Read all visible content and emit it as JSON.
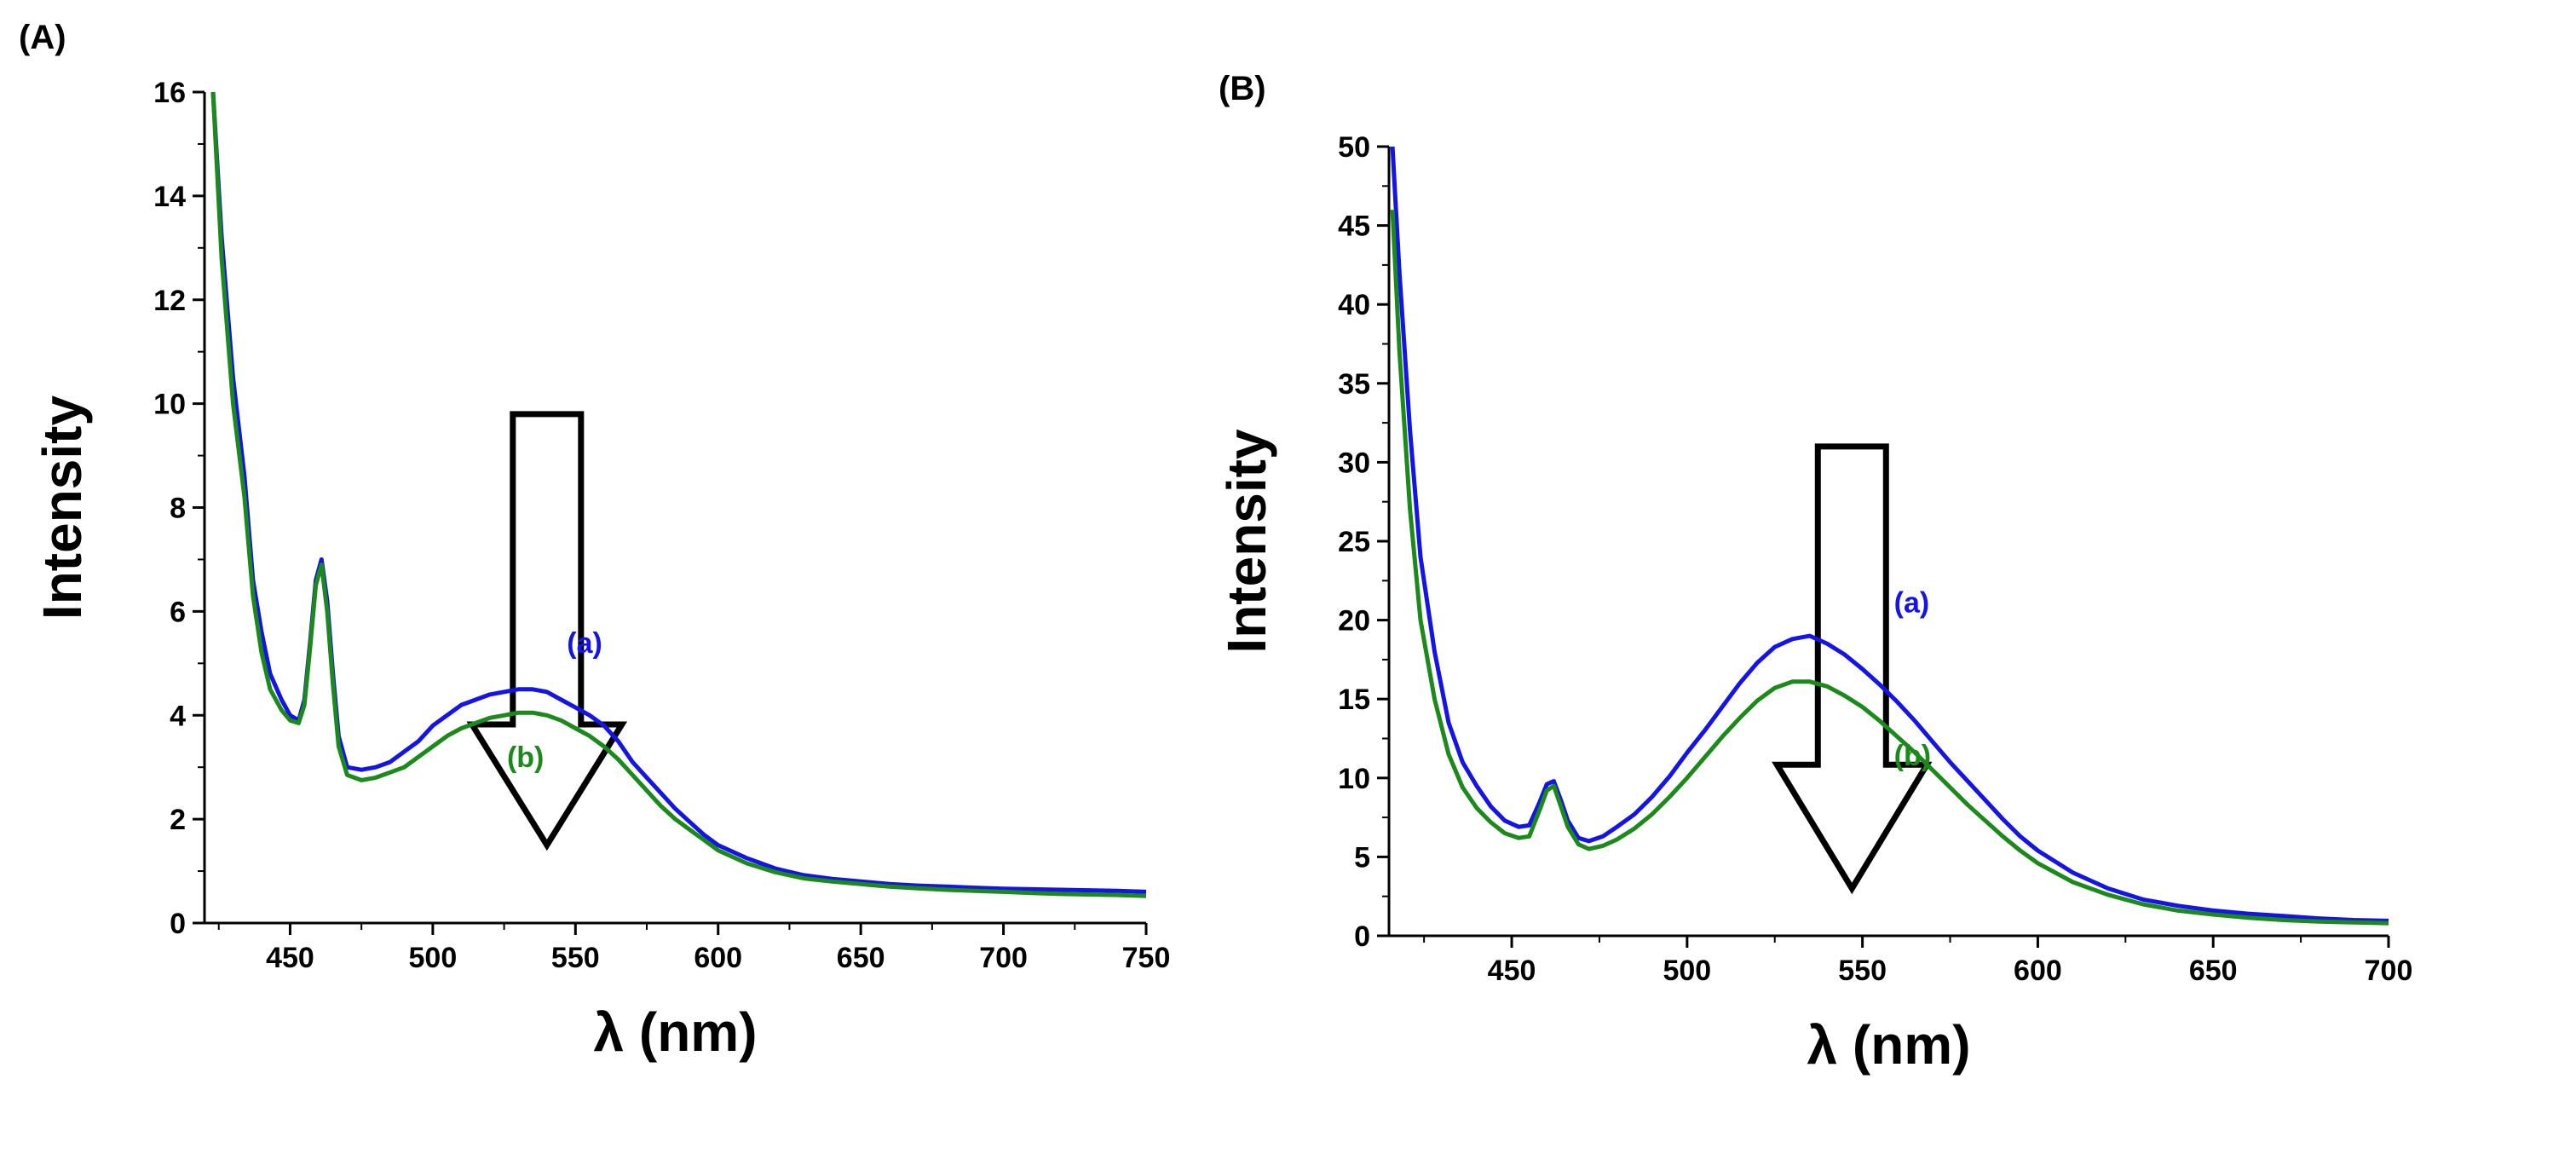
{
  "panels": {
    "a": {
      "label": "(A)"
    },
    "b": {
      "label": "(B)"
    }
  },
  "colors": {
    "series_a": "#1414e6",
    "series_b": "#1b8a1b",
    "axis": "#000000"
  },
  "chart_data": [
    {
      "id": "A",
      "type": "line",
      "title": "",
      "xlabel": "λ (nm)",
      "ylabel": "Intensity",
      "xlim": [
        420,
        750
      ],
      "ylim": [
        0,
        16
      ],
      "xticks": [
        450,
        500,
        550,
        600,
        650,
        700,
        750
      ],
      "yticks": [
        0,
        2,
        4,
        6,
        8,
        10,
        12,
        14,
        16
      ],
      "arrow": {
        "x": 540,
        "y_top": 9.8,
        "y_tip": 1.5,
        "direction": "down"
      },
      "series": [
        {
          "name": "(a)",
          "label_at": [
            547,
            5.2
          ],
          "points": [
            [
              423,
              16.0
            ],
            [
              426,
              13.2
            ],
            [
              430,
              10.5
            ],
            [
              434,
              8.6
            ],
            [
              437,
              6.6
            ],
            [
              440,
              5.6
            ],
            [
              443,
              4.8
            ],
            [
              447,
              4.3
            ],
            [
              450,
              4.0
            ],
            [
              453,
              3.9
            ],
            [
              455,
              4.3
            ],
            [
              457,
              5.4
            ],
            [
              459,
              6.6
            ],
            [
              461,
              7.0
            ],
            [
              463,
              6.2
            ],
            [
              465,
              4.8
            ],
            [
              467,
              3.6
            ],
            [
              470,
              3.0
            ],
            [
              475,
              2.95
            ],
            [
              480,
              3.0
            ],
            [
              485,
              3.1
            ],
            [
              490,
              3.3
            ],
            [
              495,
              3.5
            ],
            [
              500,
              3.8
            ],
            [
              505,
              4.0
            ],
            [
              510,
              4.2
            ],
            [
              515,
              4.3
            ],
            [
              520,
              4.4
            ],
            [
              525,
              4.45
            ],
            [
              530,
              4.5
            ],
            [
              535,
              4.5
            ],
            [
              540,
              4.45
            ],
            [
              545,
              4.3
            ],
            [
              550,
              4.15
            ],
            [
              555,
              4.0
            ],
            [
              560,
              3.8
            ],
            [
              565,
              3.5
            ],
            [
              570,
              3.1
            ],
            [
              575,
              2.8
            ],
            [
              580,
              2.5
            ],
            [
              585,
              2.2
            ],
            [
              590,
              1.95
            ],
            [
              595,
              1.7
            ],
            [
              600,
              1.5
            ],
            [
              610,
              1.25
            ],
            [
              620,
              1.05
            ],
            [
              630,
              0.92
            ],
            [
              640,
              0.85
            ],
            [
              650,
              0.8
            ],
            [
              660,
              0.75
            ],
            [
              670,
              0.72
            ],
            [
              680,
              0.7
            ],
            [
              690,
              0.68
            ],
            [
              700,
              0.66
            ],
            [
              710,
              0.65
            ],
            [
              720,
              0.64
            ],
            [
              730,
              0.63
            ],
            [
              740,
              0.62
            ],
            [
              750,
              0.6
            ]
          ]
        },
        {
          "name": "(b)",
          "label_at": [
            526,
            3.0
          ],
          "points": [
            [
              423,
              16.0
            ],
            [
              426,
              12.8
            ],
            [
              430,
              10.0
            ],
            [
              434,
              8.2
            ],
            [
              437,
              6.3
            ],
            [
              440,
              5.2
            ],
            [
              443,
              4.5
            ],
            [
              447,
              4.1
            ],
            [
              450,
              3.9
            ],
            [
              453,
              3.85
            ],
            [
              455,
              4.2
            ],
            [
              457,
              5.3
            ],
            [
              459,
              6.5
            ],
            [
              461,
              6.9
            ],
            [
              463,
              6.0
            ],
            [
              465,
              4.6
            ],
            [
              467,
              3.4
            ],
            [
              470,
              2.85
            ],
            [
              475,
              2.75
            ],
            [
              480,
              2.8
            ],
            [
              485,
              2.9
            ],
            [
              490,
              3.0
            ],
            [
              495,
              3.2
            ],
            [
              500,
              3.4
            ],
            [
              505,
              3.6
            ],
            [
              510,
              3.75
            ],
            [
              515,
              3.85
            ],
            [
              520,
              3.95
            ],
            [
              525,
              4.0
            ],
            [
              530,
              4.05
            ],
            [
              535,
              4.05
            ],
            [
              540,
              4.0
            ],
            [
              545,
              3.9
            ],
            [
              550,
              3.75
            ],
            [
              555,
              3.6
            ],
            [
              560,
              3.4
            ],
            [
              565,
              3.15
            ],
            [
              570,
              2.85
            ],
            [
              575,
              2.55
            ],
            [
              580,
              2.25
            ],
            [
              585,
              2.0
            ],
            [
              590,
              1.8
            ],
            [
              595,
              1.6
            ],
            [
              600,
              1.4
            ],
            [
              610,
              1.15
            ],
            [
              620,
              0.98
            ],
            [
              630,
              0.86
            ],
            [
              640,
              0.8
            ],
            [
              650,
              0.75
            ],
            [
              660,
              0.7
            ],
            [
              670,
              0.67
            ],
            [
              680,
              0.64
            ],
            [
              690,
              0.62
            ],
            [
              700,
              0.6
            ],
            [
              710,
              0.58
            ],
            [
              720,
              0.56
            ],
            [
              730,
              0.55
            ],
            [
              740,
              0.54
            ],
            [
              750,
              0.52
            ]
          ]
        }
      ]
    },
    {
      "id": "B",
      "type": "line",
      "title": "",
      "xlabel": "λ (nm)",
      "ylabel": "Intensity",
      "xlim": [
        415,
        700
      ],
      "ylim": [
        0,
        50
      ],
      "xticks": [
        450,
        500,
        550,
        600,
        650,
        700
      ],
      "yticks": [
        0,
        5,
        10,
        15,
        20,
        25,
        30,
        35,
        40,
        45,
        50
      ],
      "arrow": {
        "x": 547,
        "y_top": 31,
        "y_tip": 3,
        "direction": "down"
      },
      "series": [
        {
          "name": "(a)",
          "label_at": [
            559,
            20.5
          ],
          "points": [
            [
              416,
              50.0
            ],
            [
              418,
              42.0
            ],
            [
              421,
              32.0
            ],
            [
              424,
              24.0
            ],
            [
              428,
              18.0
            ],
            [
              432,
              13.5
            ],
            [
              436,
              11.0
            ],
            [
              440,
              9.5
            ],
            [
              444,
              8.2
            ],
            [
              448,
              7.3
            ],
            [
              452,
              6.9
            ],
            [
              455,
              7.0
            ],
            [
              458,
              8.5
            ],
            [
              460,
              9.6
            ],
            [
              462,
              9.8
            ],
            [
              464,
              8.6
            ],
            [
              466,
              7.3
            ],
            [
              469,
              6.2
            ],
            [
              472,
              6.0
            ],
            [
              476,
              6.3
            ],
            [
              480,
              6.9
            ],
            [
              485,
              7.7
            ],
            [
              490,
              8.8
            ],
            [
              495,
              10.1
            ],
            [
              500,
              11.6
            ],
            [
              505,
              13.0
            ],
            [
              510,
              14.5
            ],
            [
              515,
              16.0
            ],
            [
              520,
              17.3
            ],
            [
              525,
              18.3
            ],
            [
              530,
              18.8
            ],
            [
              535,
              19.0
            ],
            [
              540,
              18.5
            ],
            [
              545,
              17.8
            ],
            [
              550,
              16.9
            ],
            [
              555,
              15.9
            ],
            [
              560,
              14.8
            ],
            [
              565,
              13.6
            ],
            [
              570,
              12.3
            ],
            [
              575,
              11.0
            ],
            [
              580,
              9.8
            ],
            [
              585,
              8.6
            ],
            [
              590,
              7.4
            ],
            [
              595,
              6.3
            ],
            [
              600,
              5.4
            ],
            [
              610,
              4.0
            ],
            [
              620,
              3.0
            ],
            [
              630,
              2.3
            ],
            [
              640,
              1.9
            ],
            [
              650,
              1.6
            ],
            [
              660,
              1.4
            ],
            [
              670,
              1.25
            ],
            [
              680,
              1.1
            ],
            [
              690,
              1.0
            ],
            [
              700,
              0.95
            ]
          ]
        },
        {
          "name": "(b)",
          "label_at": [
            559,
            10.8
          ],
          "points": [
            [
              416,
              46.0
            ],
            [
              418,
              37.0
            ],
            [
              421,
              27.0
            ],
            [
              424,
              20.0
            ],
            [
              428,
              15.0
            ],
            [
              432,
              11.5
            ],
            [
              436,
              9.4
            ],
            [
              440,
              8.1
            ],
            [
              444,
              7.2
            ],
            [
              448,
              6.5
            ],
            [
              452,
              6.2
            ],
            [
              455,
              6.3
            ],
            [
              458,
              8.0
            ],
            [
              460,
              9.2
            ],
            [
              462,
              9.5
            ],
            [
              464,
              8.2
            ],
            [
              466,
              6.9
            ],
            [
              469,
              5.8
            ],
            [
              472,
              5.5
            ],
            [
              476,
              5.7
            ],
            [
              480,
              6.1
            ],
            [
              485,
              6.8
            ],
            [
              490,
              7.7
            ],
            [
              495,
              8.8
            ],
            [
              500,
              10.0
            ],
            [
              505,
              11.3
            ],
            [
              510,
              12.6
            ],
            [
              515,
              13.8
            ],
            [
              520,
              14.9
            ],
            [
              525,
              15.7
            ],
            [
              530,
              16.1
            ],
            [
              535,
              16.1
            ],
            [
              540,
              15.8
            ],
            [
              545,
              15.2
            ],
            [
              550,
              14.5
            ],
            [
              555,
              13.6
            ],
            [
              560,
              12.6
            ],
            [
              565,
              11.6
            ],
            [
              570,
              10.5
            ],
            [
              575,
              9.4
            ],
            [
              580,
              8.3
            ],
            [
              585,
              7.3
            ],
            [
              590,
              6.3
            ],
            [
              595,
              5.4
            ],
            [
              600,
              4.6
            ],
            [
              610,
              3.4
            ],
            [
              620,
              2.6
            ],
            [
              630,
              2.0
            ],
            [
              640,
              1.6
            ],
            [
              650,
              1.35
            ],
            [
              660,
              1.15
            ],
            [
              670,
              1.0
            ],
            [
              680,
              0.9
            ],
            [
              690,
              0.85
            ],
            [
              700,
              0.8
            ]
          ]
        }
      ]
    }
  ]
}
